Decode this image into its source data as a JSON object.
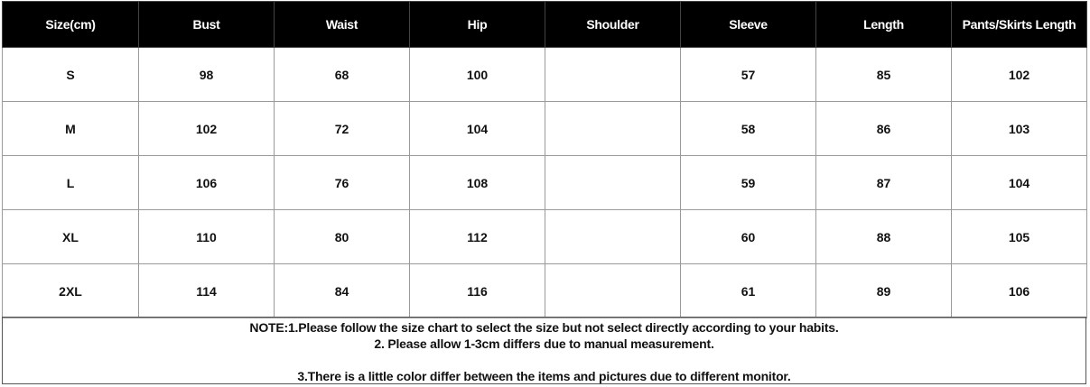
{
  "table": {
    "headers": [
      "Size(cm)",
      "Bust",
      "Waist",
      "Hip",
      "Shoulder",
      "Sleeve",
      "Length",
      "Pants/Skirts Length"
    ],
    "rows": [
      [
        "S",
        "98",
        "68",
        "100",
        "",
        "57",
        "85",
        "102"
      ],
      [
        "M",
        "102",
        "72",
        "104",
        "",
        "58",
        "86",
        "103"
      ],
      [
        "L",
        "106",
        "76",
        "108",
        "",
        "59",
        "87",
        "104"
      ],
      [
        "XL",
        "110",
        "80",
        "112",
        "",
        "60",
        "88",
        "105"
      ],
      [
        "2XL",
        "114",
        "84",
        "116",
        "",
        "61",
        "89",
        "106"
      ]
    ]
  },
  "notes": [
    "NOTE:1.Please follow the size chart to select the size but not select directly according to your habits.",
    "2. Please allow 1-3cm differs due to manual measurement.",
    "3.There is a little color differ between the items and pictures due to different monitor."
  ]
}
